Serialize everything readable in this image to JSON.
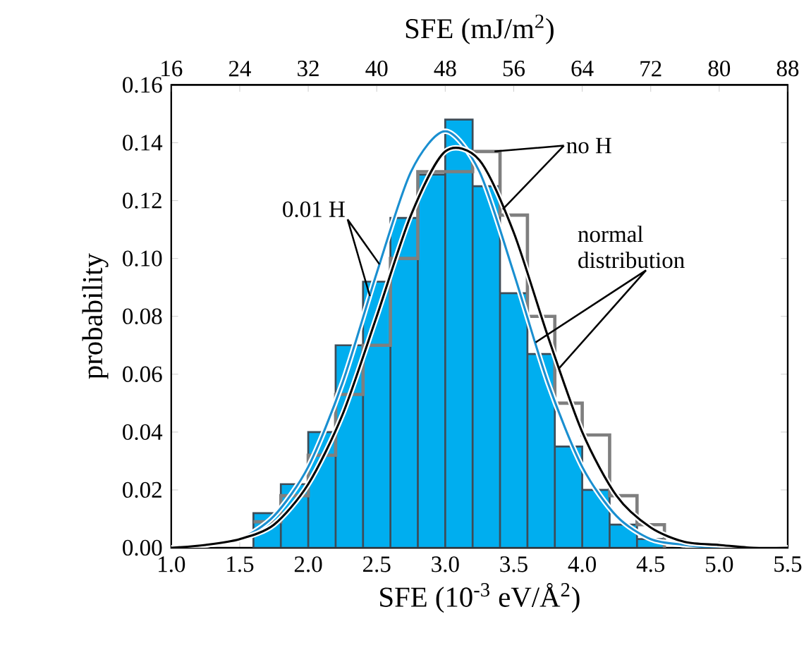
{
  "chart_data": {
    "type": "histogram",
    "xlabel": "SFE (10$^{-3}$ eV/Å$^{2}$)",
    "ylabel": "probability",
    "x2label": "SFE (mJ/m$^{2}$)",
    "bins": [
      1.6,
      1.8,
      2.0,
      2.2,
      2.4,
      2.6,
      2.8,
      3.0,
      3.2,
      3.4,
      3.6,
      3.8,
      4.0,
      4.2,
      4.4,
      4.6
    ],
    "series": [
      {
        "type": "histogram",
        "color": "#00aeef",
        "values": [
          0.012,
          0.022,
          0.04,
          0.07,
          0.092,
          0.114,
          0.129,
          0.148,
          0.125,
          0.088,
          0.067,
          0.035,
          0.02,
          0.008,
          0.003
        ]
      },
      {
        "type": "step",
        "color": "#7f7f7f",
        "x": [
          1.6,
          1.8,
          2.0,
          2.2,
          2.4,
          2.6,
          2.8,
          3.0,
          3.2,
          3.4,
          3.6,
          3.8,
          4.0,
          4.2,
          4.4,
          4.6
        ],
        "values": [
          0.009,
          0.018,
          0.032,
          0.053,
          0.07,
          0.1,
          0.13,
          0.13,
          0.137,
          0.115,
          0.08,
          0.05,
          0.039,
          0.018,
          0.008,
          0
        ]
      },
      {
        "type": "line",
        "color": "#1a8fd0",
        "x": [
          1.0,
          1.25,
          1.5,
          1.75,
          2.0,
          2.25,
          2.5,
          2.75,
          3.0,
          3.25,
          3.5,
          3.75,
          4.0,
          4.25,
          4.5,
          4.75,
          5.0,
          5.25,
          5.5
        ],
        "values": [
          0.0,
          0.001,
          0.003,
          0.011,
          0.028,
          0.057,
          0.095,
          0.13,
          0.144,
          0.13,
          0.095,
          0.057,
          0.028,
          0.011,
          0.003,
          0.001,
          0.0,
          0.0,
          0.0
        ]
      },
      {
        "type": "line",
        "color": "#000000",
        "x": [
          1.0,
          1.25,
          1.5,
          1.75,
          2.0,
          2.25,
          2.5,
          2.75,
          3.0,
          3.25,
          3.5,
          3.75,
          4.0,
          4.25,
          4.5,
          4.75,
          5.0,
          5.25,
          5.5
        ],
        "values": [
          0.0,
          0.001,
          0.003,
          0.008,
          0.022,
          0.046,
          0.08,
          0.115,
          0.137,
          0.134,
          0.109,
          0.073,
          0.04,
          0.018,
          0.007,
          0.002,
          0.001,
          0.0,
          0.0
        ]
      }
    ],
    "xlim": [
      1.0,
      5.5
    ],
    "xticks": [
      {
        "value": 1.0,
        "label": "1.0"
      },
      {
        "value": 1.5,
        "label": "1.5"
      },
      {
        "value": 2.0,
        "label": "2.0"
      },
      {
        "value": 2.5,
        "label": "2.5"
      },
      {
        "value": 3.0,
        "label": "3.0"
      },
      {
        "value": 3.5,
        "label": "3.5"
      },
      {
        "value": 4.0,
        "label": "4.0"
      },
      {
        "value": 4.5,
        "label": "4.5"
      },
      {
        "value": 5.0,
        "label": "5.0"
      },
      {
        "value": 5.5,
        "label": "5.5"
      }
    ],
    "ylim": [
      0,
      0.16
    ],
    "yticks": [
      {
        "value": 0,
        "label": "0.00"
      },
      {
        "value": 0.02,
        "label": "0.02"
      },
      {
        "value": 0.04,
        "label": "0.04"
      },
      {
        "value": 0.06,
        "label": "0.06"
      },
      {
        "value": 0.08,
        "label": "0.08"
      },
      {
        "value": 0.1,
        "label": "0.10"
      },
      {
        "value": 0.12,
        "label": "0.12"
      },
      {
        "value": 0.14,
        "label": "0.14"
      },
      {
        "value": 0.16,
        "label": "0.16"
      }
    ],
    "x2lim": [
      16,
      88
    ],
    "x2ticks": [
      16,
      24,
      32,
      40,
      48,
      56,
      64,
      72,
      80,
      88
    ],
    "annotations": [
      {
        "text": "0.01 H",
        "x": 2.52,
        "y": 0.098
      },
      "no H",
      {
        "text": "normal distribution",
        "x": 3.83,
        "y": 0.062
      }
    ]
  }
}
